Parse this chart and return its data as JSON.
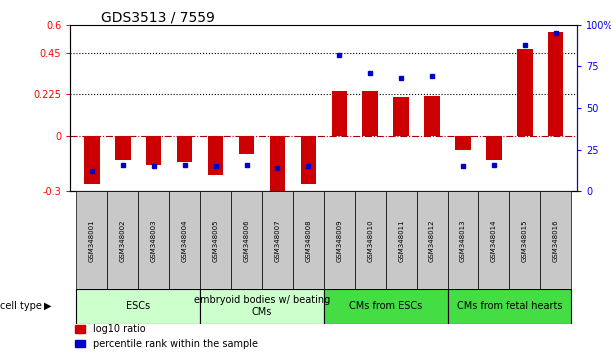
{
  "title": "GDS3513 / 7559",
  "samples": [
    "GSM348001",
    "GSM348002",
    "GSM348003",
    "GSM348004",
    "GSM348005",
    "GSM348006",
    "GSM348007",
    "GSM348008",
    "GSM348009",
    "GSM348010",
    "GSM348011",
    "GSM348012",
    "GSM348013",
    "GSM348014",
    "GSM348015",
    "GSM348016"
  ],
  "log10_ratio": [
    -0.26,
    -0.13,
    -0.16,
    -0.14,
    -0.21,
    -0.1,
    -0.32,
    -0.26,
    0.24,
    0.24,
    0.21,
    0.215,
    -0.08,
    -0.13,
    0.47,
    0.56
  ],
  "percentile_rank": [
    0.12,
    0.16,
    0.15,
    0.16,
    0.15,
    0.16,
    0.14,
    0.15,
    0.82,
    0.71,
    0.68,
    0.69,
    0.15,
    0.16,
    0.88,
    0.95
  ],
  "ylim_left": [
    -0.3,
    0.6
  ],
  "ylim_right": [
    0.0,
    1.0
  ],
  "yticks_left": [
    -0.3,
    0.0,
    0.225,
    0.45,
    0.6
  ],
  "ytick_labels_left": [
    "-0.3",
    "0",
    "0.225",
    "0.45",
    "0.6"
  ],
  "yticks_right": [
    0.0,
    0.25,
    0.5,
    0.75,
    1.0
  ],
  "ytick_labels_right": [
    "0",
    "25",
    "50",
    "75",
    "100%"
  ],
  "hlines_dotted": [
    0.225,
    0.45
  ],
  "hline_dashdot": 0.0,
  "cell_type_groups": [
    {
      "label": "ESCs",
      "start": 0,
      "end": 4,
      "color": "#CCFFCC"
    },
    {
      "label": "embryoid bodies w/ beating\nCMs",
      "start": 4,
      "end": 8,
      "color": "#CCFFCC"
    },
    {
      "label": "CMs from ESCs",
      "start": 8,
      "end": 12,
      "color": "#44DD44"
    },
    {
      "label": "CMs from fetal hearts",
      "start": 12,
      "end": 16,
      "color": "#44DD44"
    }
  ],
  "bar_color_red": "#CC0000",
  "bar_color_blue": "#0000CC",
  "bar_width": 0.5,
  "legend_red": "log10 ratio",
  "legend_blue": "percentile rank within the sample",
  "bg_color": "#ffffff",
  "tick_label_fontsize": 7,
  "title_fontsize": 10,
  "sample_fontsize": 5,
  "celltype_fontsize": 7
}
